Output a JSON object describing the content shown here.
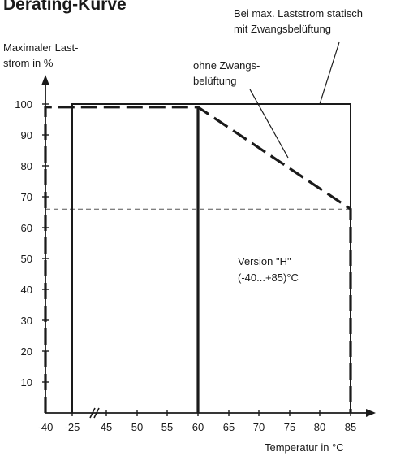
{
  "chart_data": {
    "type": "line",
    "title": "Derating-Kurve",
    "ylabel_lines": [
      "Maximaler Last-",
      "strom in %"
    ],
    "xlabel": "Temperatur in °C",
    "ylim": [
      0,
      100
    ],
    "y_ticks": [
      10,
      20,
      30,
      40,
      50,
      60,
      70,
      80,
      90,
      100
    ],
    "x_ticks": [
      -40,
      -25,
      45,
      50,
      55,
      60,
      65,
      70,
      75,
      80,
      85
    ],
    "x_axis_break": true,
    "reference_line_y": 66,
    "series": [
      {
        "name": "Bei max. Laststrom statisch mit Zwangsbelüftung",
        "style": "solid",
        "points": [
          [
            -25,
            0
          ],
          [
            -25,
            100
          ],
          [
            85,
            100
          ],
          [
            85,
            0
          ]
        ]
      },
      {
        "name": "ohne Zwangsbelüftung",
        "style": "dashed",
        "points": [
          [
            -40,
            0
          ],
          [
            -40,
            99
          ],
          [
            60,
            99
          ],
          [
            85,
            66
          ],
          [
            85,
            0
          ]
        ]
      }
    ],
    "annotations": [
      {
        "id": "forced",
        "lines": [
          "Bei max. Laststrom statisch",
          "mit Zwangsbelüftung"
        ]
      },
      {
        "id": "natural",
        "lines": [
          "ohne Zwangs-",
          "belüftung"
        ]
      },
      {
        "id": "version",
        "lines": [
          "Version \"H\"",
          "(-40...+85)°C"
        ]
      }
    ],
    "colors": {
      "ink": "#1a1a1a",
      "reference": "#555555"
    }
  }
}
